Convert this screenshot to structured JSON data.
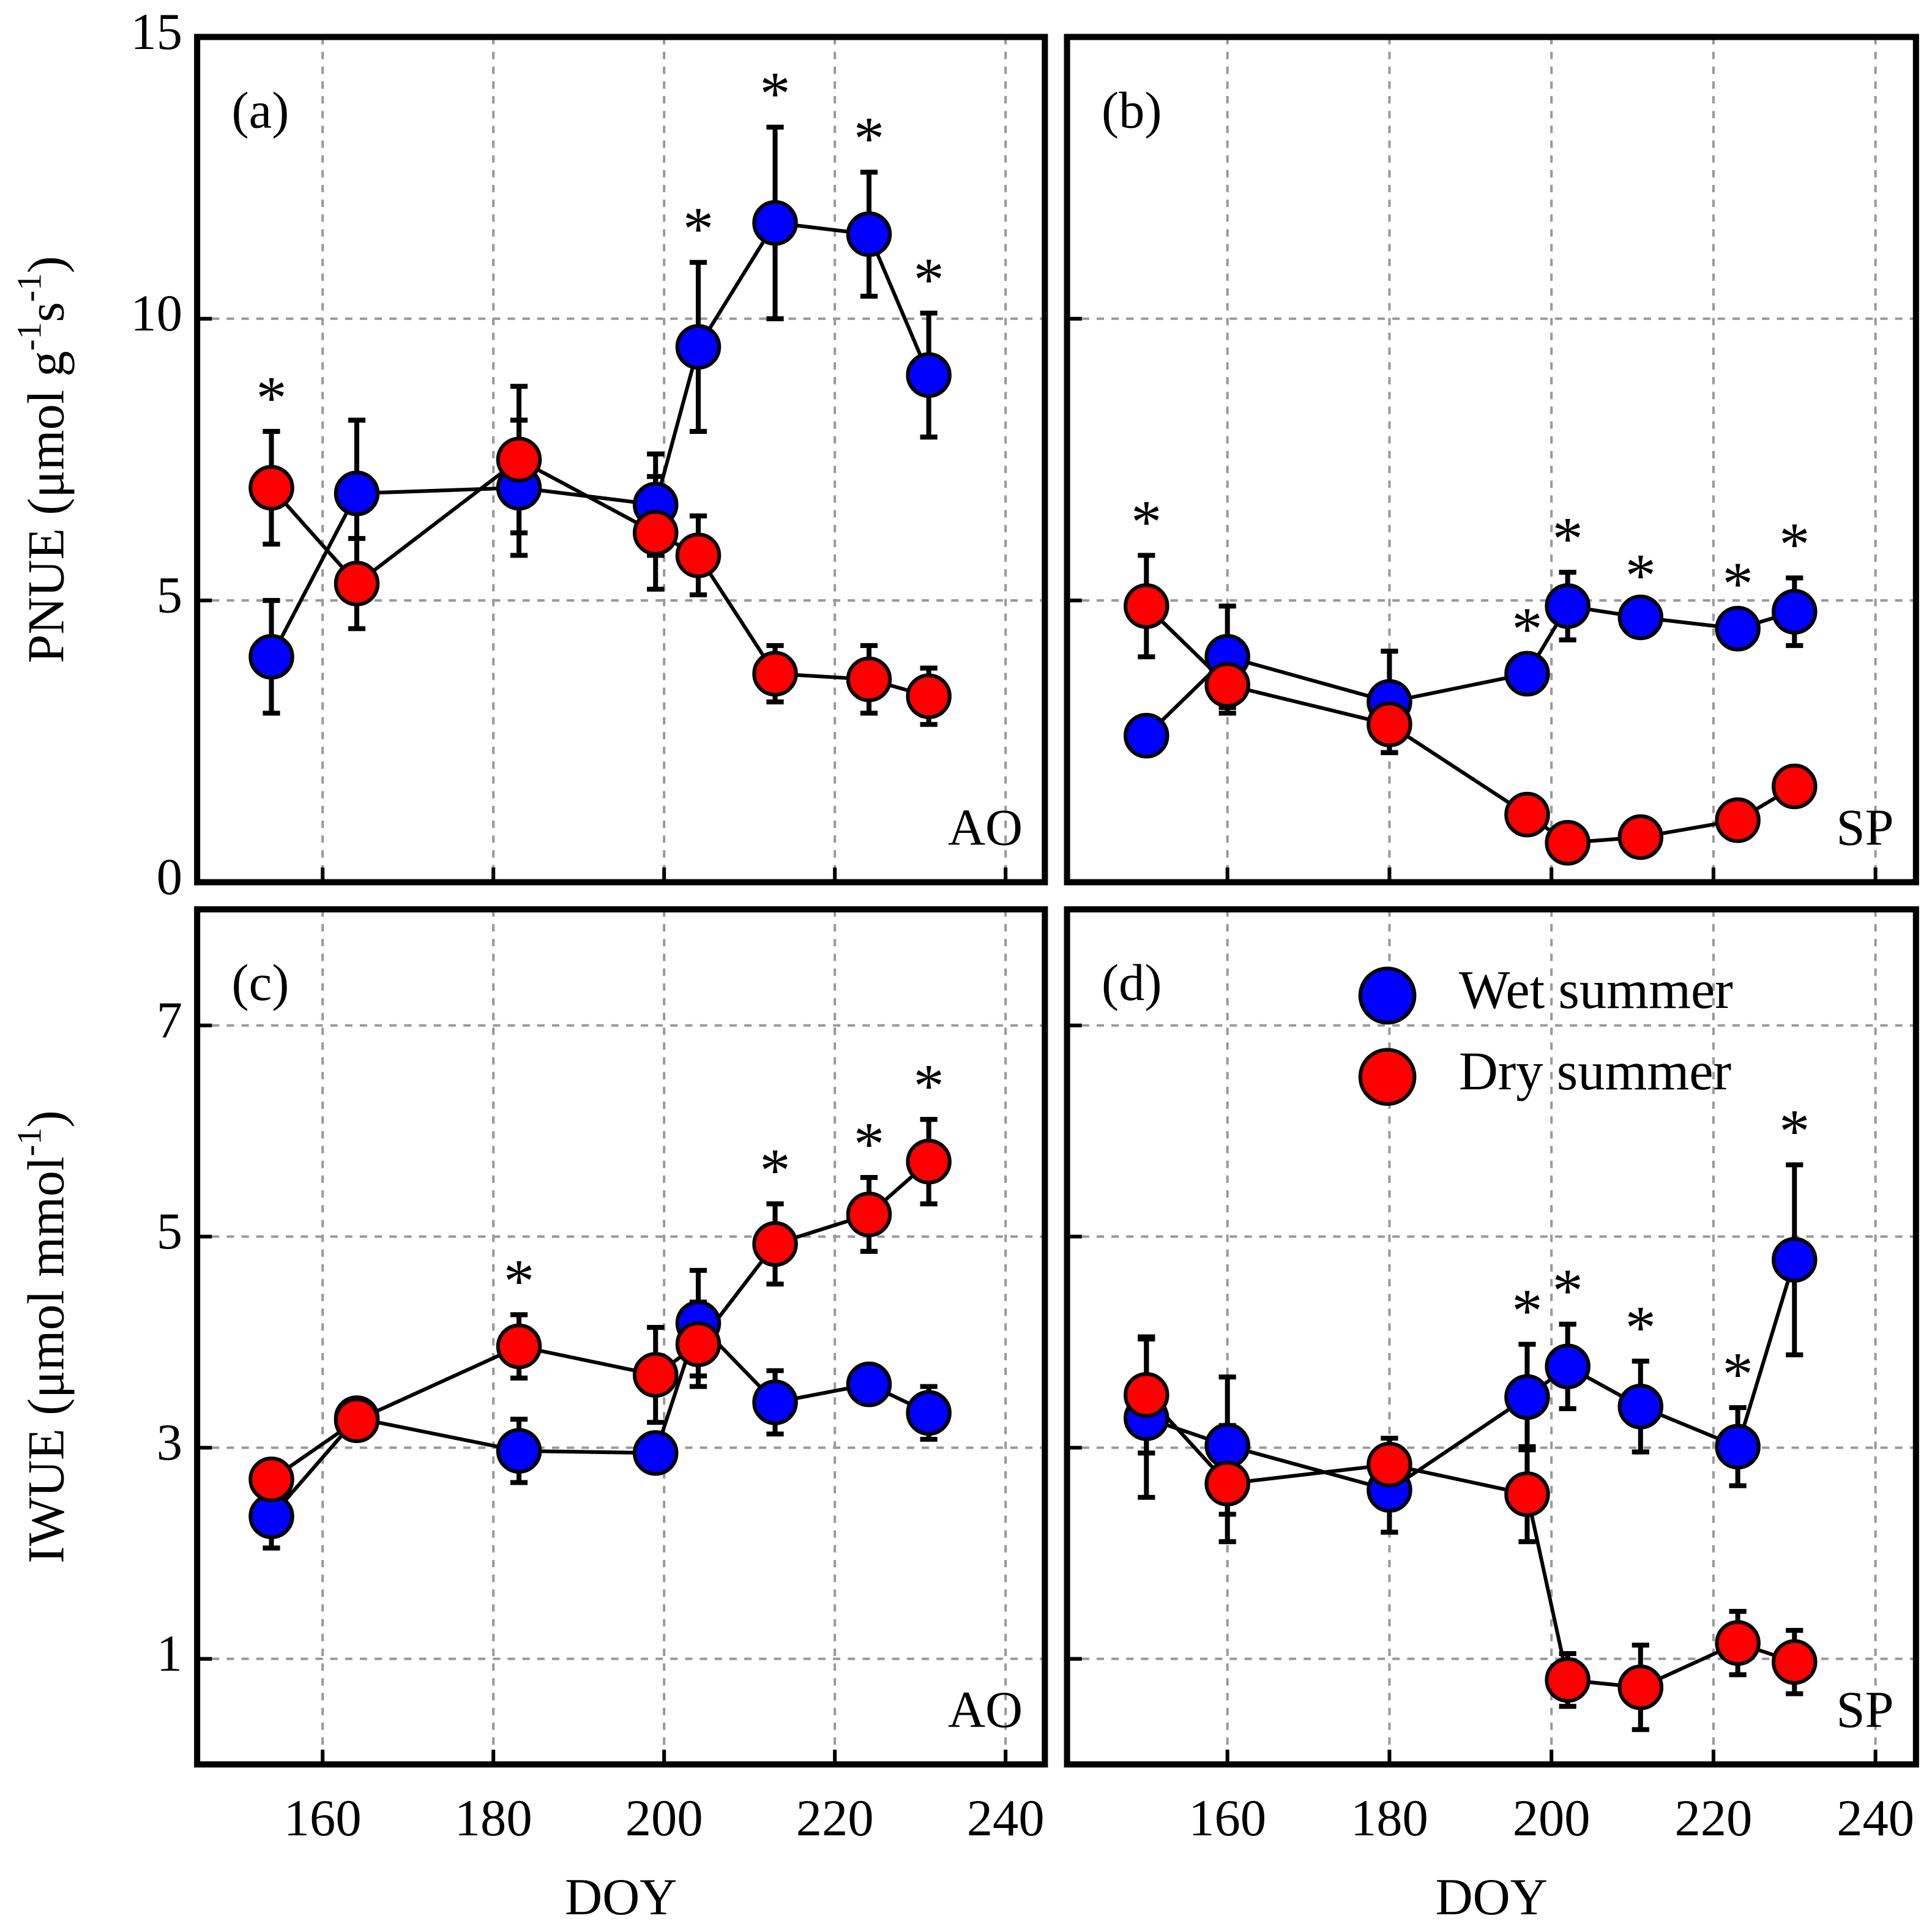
{
  "chart_data": [
    {
      "type": "line",
      "panel_label": "(a)",
      "site_label": "AO",
      "ylabel": {
        "parts": [
          "PNUE  (μmol g",
          "-1",
          "s",
          "-1",
          ")"
        ],
        "superscript": [
          false,
          true,
          false,
          true,
          false
        ]
      },
      "x": [
        154,
        164,
        183,
        199,
        204,
        213,
        224,
        231
      ],
      "series": [
        {
          "color": "#0000ff",
          "values": [
            4.0,
            6.9,
            7.0,
            6.7,
            9.5,
            11.7,
            11.5,
            9.0
          ],
          "errors": [
            1.0,
            1.3,
            1.2,
            0.9,
            1.5,
            1.7,
            1.1,
            1.1
          ]
        },
        {
          "color": "#ff0000",
          "values": [
            7.0,
            5.3,
            7.5,
            6.2,
            5.8,
            3.7,
            3.6,
            3.3
          ],
          "errors": [
            1.0,
            0.8,
            1.3,
            1.0,
            0.7,
            0.5,
            0.6,
            0.5
          ]
        }
      ],
      "significant": [
        true,
        false,
        false,
        false,
        true,
        true,
        true,
        true
      ],
      "sig_marker": "*",
      "xlim": [
        145.3,
        244.6
      ],
      "xticks": [
        160,
        180,
        200,
        220,
        240
      ],
      "xticklabels": false,
      "ylim": [
        0,
        15
      ],
      "yticks": [
        0,
        5,
        10,
        15
      ],
      "yticklabels": true,
      "grid": true
    },
    {
      "type": "line",
      "panel_label": "(b)",
      "site_label": "SP",
      "x": [
        150,
        160,
        180,
        197,
        202,
        211,
        223,
        230
      ],
      "series": [
        {
          "color": "#0000ff",
          "values": [
            2.6,
            4.0,
            3.2,
            3.7,
            4.9,
            4.7,
            4.5,
            4.8
          ],
          "errors": [
            0.1,
            0.9,
            0.9,
            0.2,
            0.6,
            0.15,
            0.2,
            0.6
          ]
        },
        {
          "color": "#ff0000",
          "values": [
            4.9,
            3.5,
            2.8,
            1.2,
            0.7,
            0.8,
            1.1,
            1.7
          ],
          "errors": [
            0.9,
            0.5,
            0.5,
            0.15,
            0.1,
            0.1,
            0.2,
            0.2
          ]
        }
      ],
      "significant": [
        true,
        false,
        false,
        true,
        true,
        true,
        true,
        true
      ],
      "sig_marker": "*",
      "xlim": [
        140.2,
        245
      ],
      "xticks": [
        160,
        180,
        200,
        220,
        240
      ],
      "xticklabels": false,
      "ylim": [
        0,
        15
      ],
      "yticks": [
        0,
        5,
        10,
        15
      ],
      "yticklabels": false,
      "grid": true
    },
    {
      "type": "line",
      "panel_label": "(c)",
      "site_label": "AO",
      "xlabel": "DOY",
      "ylabel": {
        "parts": [
          "IWUE (μmol mmol",
          "-1",
          ")"
        ],
        "superscript": [
          false,
          true,
          false
        ]
      },
      "x": [
        154,
        164,
        183,
        199,
        204,
        213,
        224,
        231
      ],
      "series": [
        {
          "color": "#0000ff",
          "values": [
            2.35,
            3.28,
            2.97,
            2.95,
            4.18,
            3.43,
            3.6,
            3.33
          ],
          "errors": [
            0.3,
            0.15,
            0.3,
            0.05,
            0.5,
            0.3,
            0.15,
            0.25
          ]
        },
        {
          "color": "#ff0000",
          "values": [
            2.7,
            3.26,
            3.96,
            3.69,
            3.98,
            4.93,
            5.21,
            5.71
          ],
          "errors": [
            0.15,
            0.15,
            0.3,
            0.45,
            0.4,
            0.38,
            0.35,
            0.4
          ]
        }
      ],
      "significant": [
        false,
        false,
        true,
        false,
        false,
        true,
        true,
        true
      ],
      "sig_marker": "*",
      "xlim": [
        145.3,
        244.6
      ],
      "xticks": [
        160,
        180,
        200,
        220,
        240
      ],
      "xticklabels": true,
      "ylim": [
        0,
        8.1
      ],
      "yticks": [
        1,
        3,
        5,
        7
      ],
      "yticklabels": true,
      "grid": true
    },
    {
      "type": "line",
      "panel_label": "(d)",
      "site_label": "SP",
      "xlabel": "DOY",
      "legend": "upper right",
      "x": [
        150,
        160,
        180,
        197,
        202,
        211,
        223,
        230
      ],
      "series": [
        {
          "name": "Wet summer",
          "color": "#0000ff",
          "values": [
            3.28,
            3.02,
            2.6,
            3.48,
            3.77,
            3.39,
            3.01,
            4.78
          ],
          "errors": [
            0.75,
            0.65,
            0.4,
            0.5,
            0.4,
            0.43,
            0.37,
            0.9
          ]
        },
        {
          "name": "Dry summer",
          "color": "#ff0000",
          "values": [
            3.5,
            2.66,
            2.84,
            2.56,
            0.8,
            0.73,
            1.15,
            0.97
          ],
          "errors": [
            0.55,
            0.55,
            0.25,
            0.45,
            0.25,
            0.4,
            0.3,
            0.3
          ]
        }
      ],
      "significant": [
        false,
        false,
        false,
        true,
        true,
        true,
        true,
        true
      ],
      "sig_marker": "*",
      "xlim": [
        140.2,
        245
      ],
      "xticks": [
        160,
        180,
        200,
        220,
        240
      ],
      "xticklabels": true,
      "ylim": [
        0,
        8.1
      ],
      "yticks": [
        1,
        3,
        5,
        7
      ],
      "yticklabels": false,
      "grid": true
    }
  ]
}
